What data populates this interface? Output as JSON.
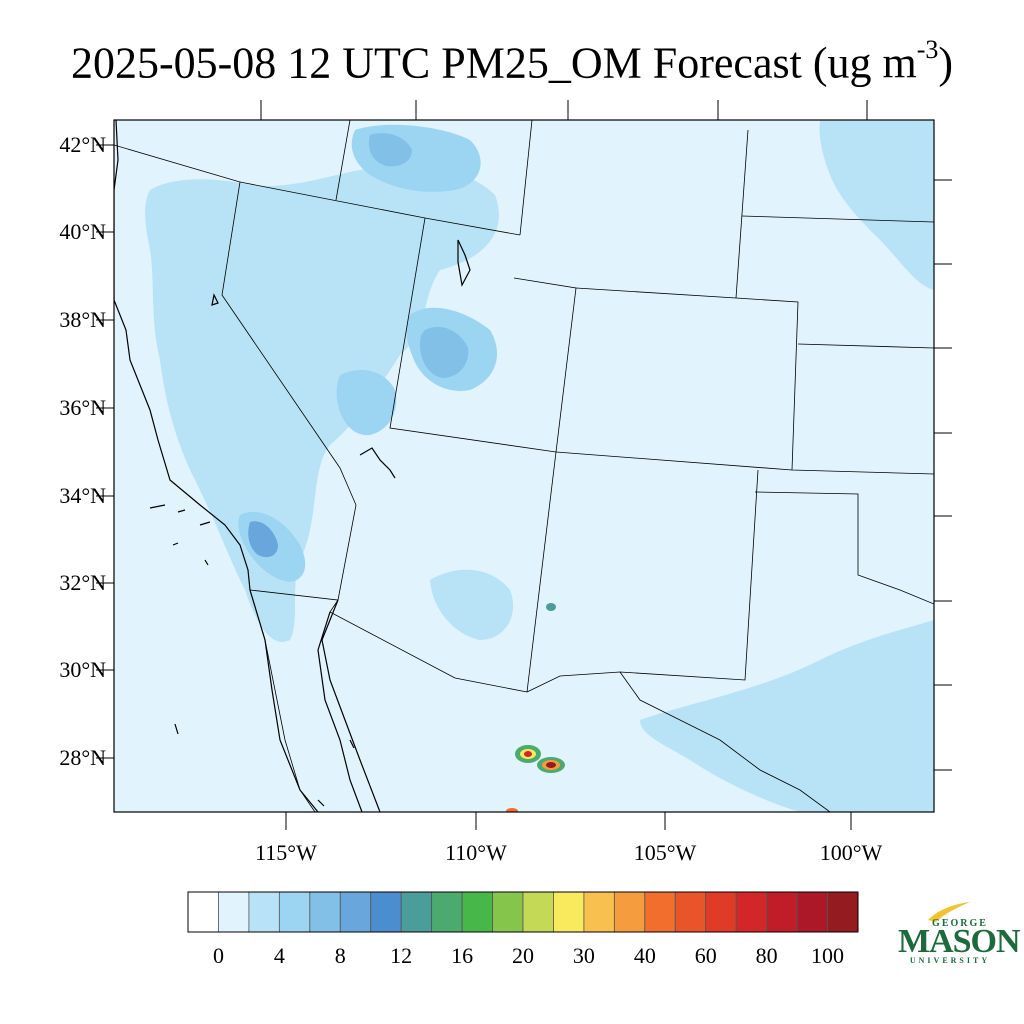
{
  "title": {
    "main": "2025-05-08 12 UTC PM25_OM Forecast (ug m",
    "superscript": "-3",
    "close": ")"
  },
  "map": {
    "lat_labels": [
      "42°N",
      "40°N",
      "38°N",
      "36°N",
      "34°N",
      "32°N",
      "30°N",
      "28°N"
    ],
    "lon_labels": [
      "115°W",
      "110°W",
      "105°W",
      "100°W"
    ],
    "base_color": "#e1f3fc",
    "border_color": "#000000"
  },
  "colorbar": {
    "colors": [
      "#ffffff",
      "#e1f3fc",
      "#b8e3f6",
      "#9cd5f2",
      "#82c0e8",
      "#68a6dc",
      "#4b8ecf",
      "#4a9d9a",
      "#4caa6e",
      "#47b74a",
      "#86c54b",
      "#c4d955",
      "#f8e95d",
      "#f8c04e",
      "#f59c3e",
      "#f26e2d",
      "#ea5429",
      "#e03b27",
      "#d32628",
      "#c01d28",
      "#ad1828",
      "#941b1f"
    ],
    "labels": [
      "0",
      "4",
      "8",
      "12",
      "16",
      "20",
      "30",
      "40",
      "60",
      "80",
      "100"
    ]
  },
  "logo": {
    "line1": "GEORGE",
    "line2": "MASON",
    "line3": "UNIVERSITY",
    "color": "#1d6a3c",
    "accent": "#f2c230"
  }
}
